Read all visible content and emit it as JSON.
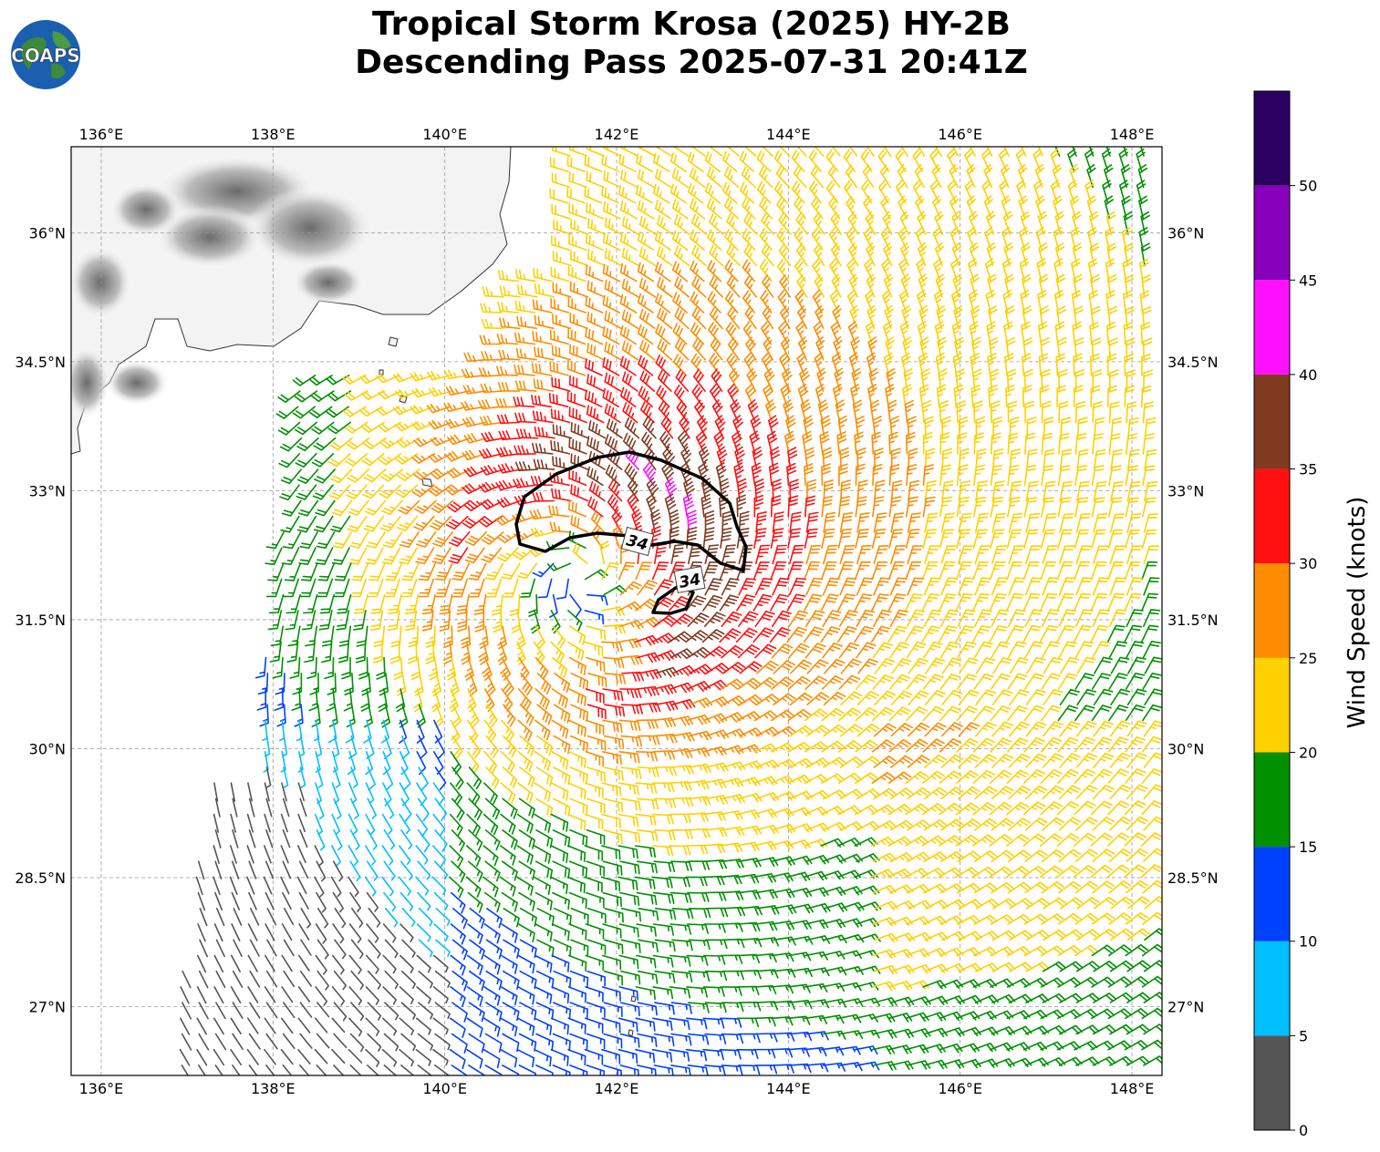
{
  "title": {
    "line1": "Tropical Storm Krosa (2025) HY-2B",
    "line2": "Descending Pass 2025-07-31 20:41Z"
  },
  "logo": {
    "text": "COAPS",
    "icon": "globe-icon"
  },
  "map": {
    "lon_ticks": [
      "136°E",
      "138°E",
      "140°E",
      "142°E",
      "144°E",
      "146°E",
      "148°E"
    ],
    "lon_values": [
      136,
      138,
      140,
      142,
      144,
      146,
      148
    ],
    "lat_ticks": [
      "36°N",
      "34.5°N",
      "33°N",
      "31.5°N",
      "30°N",
      "28.5°N",
      "27°N"
    ],
    "lat_values": [
      36,
      34.5,
      33,
      31.5,
      30,
      28.5,
      27
    ],
    "lon_range": [
      135.65,
      148.35
    ],
    "lat_range": [
      26.2,
      37.0
    ],
    "storm_center": {
      "lon": 141.6,
      "lat": 32.0
    },
    "contour_label": "34",
    "contour_value_knots": 34
  },
  "colorbar": {
    "title": "Wind Speed (knots)",
    "bounds": [
      0,
      5,
      10,
      15,
      20,
      25,
      30,
      35,
      40,
      45,
      50,
      55
    ],
    "labels": [
      "0",
      "5",
      "10",
      "15",
      "20",
      "25",
      "30",
      "35",
      "40",
      "45",
      "50"
    ],
    "colors": [
      "#555555",
      "#00bfff",
      "#0040ff",
      "#009000",
      "#ffd000",
      "#ff8c00",
      "#ff1010",
      "#803a20",
      "#ff10ff",
      "#8800bb",
      "#2c0060"
    ]
  }
}
